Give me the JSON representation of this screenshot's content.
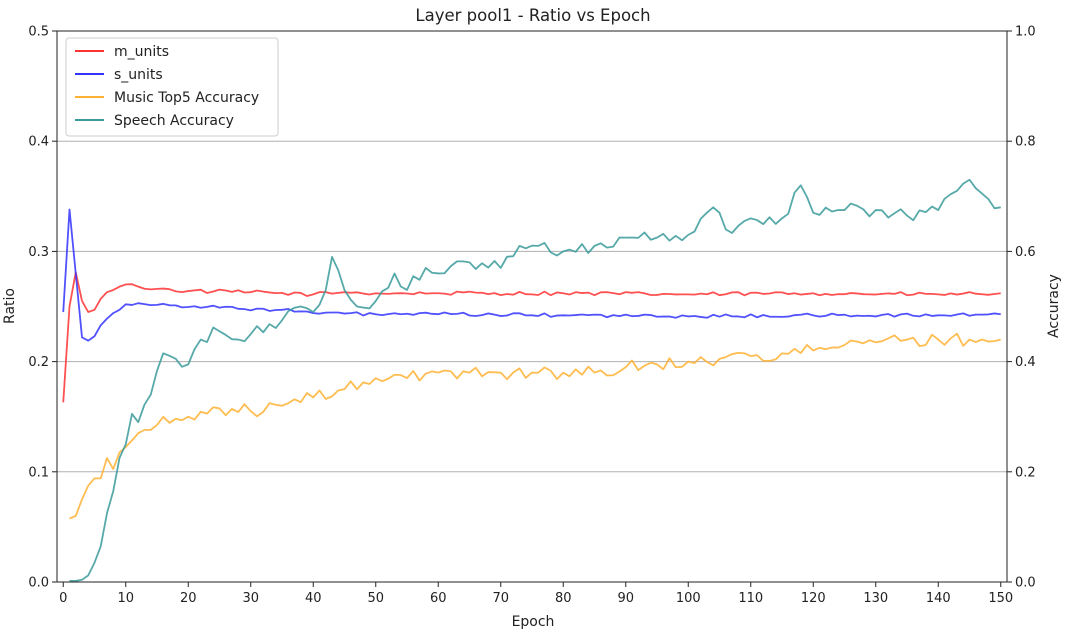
{
  "chart_data": {
    "type": "line",
    "title": "Layer pool1 - Ratio vs Epoch",
    "xlabel": "Epoch",
    "ylabel": "Ratio",
    "y2label": "Accuracy",
    "xlim": [
      -1,
      151
    ],
    "ylim": [
      0,
      0.5
    ],
    "y2lim": [
      0,
      1.0
    ],
    "xticks": [
      0,
      10,
      20,
      30,
      40,
      50,
      60,
      70,
      80,
      90,
      100,
      110,
      120,
      130,
      140,
      150
    ],
    "yticks": [
      0.0,
      0.1,
      0.2,
      0.3,
      0.4,
      0.5
    ],
    "y2ticks": [
      0.0,
      0.2,
      0.4,
      0.6,
      0.8,
      1.0
    ],
    "grid": "horizontal",
    "legend_position": "top-left",
    "series": [
      {
        "name": "m_units",
        "axis": "left",
        "color": "#ff3333",
        "anchors": [
          [
            0,
            0.163
          ],
          [
            1,
            0.25
          ],
          [
            2,
            0.281
          ],
          [
            3,
            0.255
          ],
          [
            4,
            0.245
          ],
          [
            5,
            0.247
          ],
          [
            6,
            0.257
          ],
          [
            7,
            0.263
          ],
          [
            8,
            0.265
          ],
          [
            9,
            0.268
          ],
          [
            10,
            0.27
          ],
          [
            12,
            0.268
          ],
          [
            15,
            0.266
          ],
          [
            20,
            0.264
          ],
          [
            30,
            0.263
          ],
          [
            40,
            0.261
          ],
          [
            45,
            0.263
          ],
          [
            50,
            0.262
          ],
          [
            60,
            0.262
          ],
          [
            80,
            0.262
          ],
          [
            100,
            0.261
          ],
          [
            120,
            0.262
          ],
          [
            140,
            0.261
          ],
          [
            150,
            0.262
          ]
        ],
        "noise": 0.0018
      },
      {
        "name": "s_units",
        "axis": "left",
        "color": "#3333ff",
        "anchors": [
          [
            0,
            0.245
          ],
          [
            1,
            0.338
          ],
          [
            2,
            0.28
          ],
          [
            3,
            0.222
          ],
          [
            4,
            0.219
          ],
          [
            5,
            0.223
          ],
          [
            6,
            0.233
          ],
          [
            7,
            0.239
          ],
          [
            8,
            0.244
          ],
          [
            9,
            0.247
          ],
          [
            10,
            0.252
          ],
          [
            12,
            0.253
          ],
          [
            18,
            0.251
          ],
          [
            25,
            0.249
          ],
          [
            35,
            0.247
          ],
          [
            40,
            0.244
          ],
          [
            50,
            0.243
          ],
          [
            60,
            0.243
          ],
          [
            80,
            0.242
          ],
          [
            100,
            0.241
          ],
          [
            120,
            0.242
          ],
          [
            140,
            0.242
          ],
          [
            150,
            0.243
          ]
        ],
        "noise": 0.0016
      },
      {
        "name": "Music Top5 Accuracy",
        "axis": "right",
        "color": "#ffb133",
        "anchors": [
          [
            1,
            0.115
          ],
          [
            2,
            0.12
          ],
          [
            3,
            0.15
          ],
          [
            4,
            0.175
          ],
          [
            5,
            0.188
          ],
          [
            6,
            0.188
          ],
          [
            7,
            0.225
          ],
          [
            8,
            0.205
          ],
          [
            9,
            0.235
          ],
          [
            10,
            0.245
          ],
          [
            12,
            0.27
          ],
          [
            15,
            0.285
          ],
          [
            20,
            0.3
          ],
          [
            25,
            0.315
          ],
          [
            30,
            0.31
          ],
          [
            35,
            0.32
          ],
          [
            40,
            0.335
          ],
          [
            45,
            0.35
          ],
          [
            50,
            0.37
          ],
          [
            55,
            0.37
          ],
          [
            60,
            0.38
          ],
          [
            65,
            0.38
          ],
          [
            70,
            0.38
          ],
          [
            75,
            0.38
          ],
          [
            80,
            0.38
          ],
          [
            85,
            0.38
          ],
          [
            90,
            0.39
          ],
          [
            95,
            0.395
          ],
          [
            100,
            0.4
          ],
          [
            105,
            0.405
          ],
          [
            110,
            0.41
          ],
          [
            115,
            0.415
          ],
          [
            120,
            0.42
          ],
          [
            125,
            0.43
          ],
          [
            130,
            0.435
          ],
          [
            135,
            0.44
          ],
          [
            140,
            0.44
          ],
          [
            145,
            0.44
          ],
          [
            150,
            0.44
          ]
        ],
        "noise": 0.012
      },
      {
        "name": "Speech Accuracy",
        "axis": "right",
        "color": "#3a9a9a",
        "anchors": [
          [
            1,
            0.002
          ],
          [
            2,
            0.002
          ],
          [
            3,
            0.004
          ],
          [
            4,
            0.012
          ],
          [
            5,
            0.035
          ],
          [
            6,
            0.065
          ],
          [
            7,
            0.125
          ],
          [
            8,
            0.165
          ],
          [
            9,
            0.225
          ],
          [
            10,
            0.25
          ],
          [
            11,
            0.305
          ],
          [
            12,
            0.29
          ],
          [
            14,
            0.34
          ],
          [
            16,
            0.415
          ],
          [
            18,
            0.405
          ],
          [
            20,
            0.395
          ],
          [
            22,
            0.44
          ],
          [
            25,
            0.455
          ],
          [
            28,
            0.44
          ],
          [
            30,
            0.45
          ],
          [
            35,
            0.475
          ],
          [
            38,
            0.5
          ],
          [
            40,
            0.49
          ],
          [
            42,
            0.53
          ],
          [
            43,
            0.59
          ],
          [
            45,
            0.53
          ],
          [
            47,
            0.5
          ],
          [
            50,
            0.51
          ],
          [
            53,
            0.56
          ],
          [
            55,
            0.53
          ],
          [
            58,
            0.57
          ],
          [
            60,
            0.56
          ],
          [
            65,
            0.58
          ],
          [
            70,
            0.57
          ],
          [
            73,
            0.61
          ],
          [
            76,
            0.61
          ],
          [
            80,
            0.6
          ],
          [
            85,
            0.61
          ],
          [
            90,
            0.625
          ],
          [
            95,
            0.625
          ],
          [
            100,
            0.63
          ],
          [
            104,
            0.68
          ],
          [
            106,
            0.64
          ],
          [
            110,
            0.66
          ],
          [
            115,
            0.66
          ],
          [
            118,
            0.72
          ],
          [
            120,
            0.67
          ],
          [
            125,
            0.675
          ],
          [
            130,
            0.675
          ],
          [
            135,
            0.665
          ],
          [
            140,
            0.675
          ],
          [
            143,
            0.71
          ],
          [
            145,
            0.73
          ],
          [
            147,
            0.705
          ],
          [
            150,
            0.68
          ]
        ],
        "noise": 0.012
      }
    ]
  }
}
